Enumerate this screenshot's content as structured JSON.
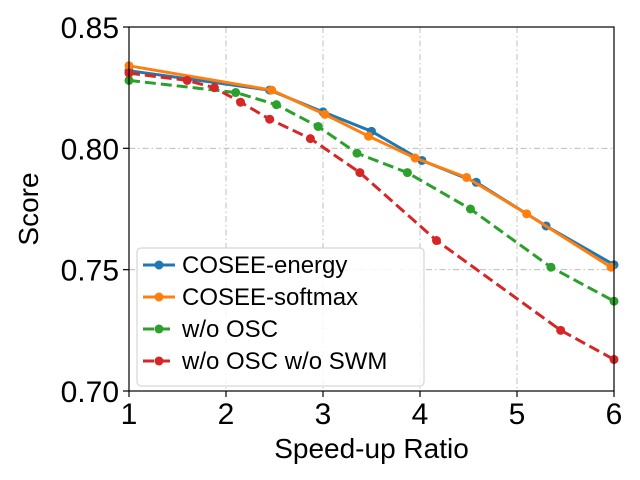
{
  "chart_data": {
    "type": "line",
    "title": "",
    "xlabel": "Speed-up Ratio",
    "ylabel": "Score",
    "xlim": [
      1,
      6
    ],
    "ylim": [
      0.7,
      0.85
    ],
    "xticks": [
      1,
      2,
      3,
      4,
      5,
      6
    ],
    "yticks": [
      0.7,
      0.75,
      0.8,
      0.85
    ],
    "xtick_labels": [
      "1",
      "2",
      "3",
      "4",
      "5",
      "6"
    ],
    "ytick_labels": [
      "0.70",
      "0.75",
      "0.80",
      "0.85"
    ],
    "grid": true,
    "legend_position": "lower-left",
    "series": [
      {
        "name": "COSEE-energy",
        "color": "#1f77b4",
        "dashed": false,
        "x": [
          1.0,
          2.45,
          3.0,
          3.5,
          4.02,
          4.58,
          5.3,
          6.0
        ],
        "y": [
          0.832,
          0.824,
          0.815,
          0.807,
          0.795,
          0.786,
          0.768,
          0.752
        ]
      },
      {
        "name": "COSEE-softmax",
        "color": "#ff7f0e",
        "dashed": false,
        "x": [
          1.0,
          2.47,
          3.02,
          3.47,
          3.95,
          4.48,
          5.1,
          5.97
        ],
        "y": [
          0.834,
          0.824,
          0.814,
          0.805,
          0.796,
          0.788,
          0.773,
          0.751
        ]
      },
      {
        "name": "w/o OSC",
        "color": "#2ca02c",
        "dashed": true,
        "x": [
          1.0,
          2.1,
          2.52,
          2.95,
          3.35,
          3.87,
          4.52,
          5.35,
          6.0
        ],
        "y": [
          0.828,
          0.823,
          0.818,
          0.809,
          0.798,
          0.79,
          0.775,
          0.751,
          0.737
        ]
      },
      {
        "name": "w/o OSC w/o SWM",
        "color": "#d62728",
        "dashed": true,
        "x": [
          1.0,
          1.6,
          1.88,
          2.15,
          2.45,
          2.87,
          3.38,
          4.17,
          5.45,
          6.0
        ],
        "y": [
          0.831,
          0.828,
          0.825,
          0.819,
          0.812,
          0.804,
          0.79,
          0.762,
          0.725,
          0.713
        ]
      }
    ]
  }
}
